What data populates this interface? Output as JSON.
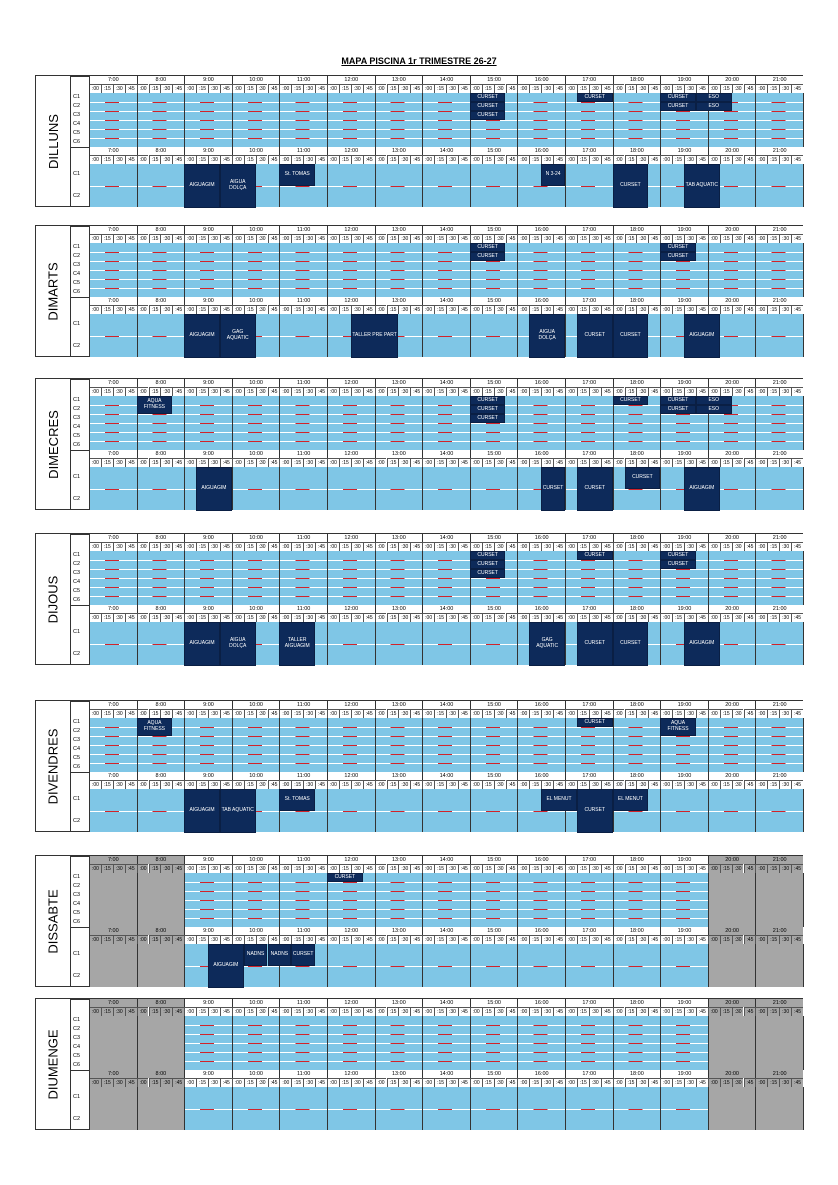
{
  "title": "MAPA PISCINA 1r TRIMESTRE 26-27",
  "hours": [
    "7:00",
    "8:00",
    "9:00",
    "10:00",
    "11:00",
    "12:00",
    "13:00",
    "14:00",
    "15:00",
    "16:00",
    "17:00",
    "18:00",
    "19:00",
    "20:00",
    "21:00"
  ],
  "quarters": [
    ":00",
    ":15",
    ":30",
    ":45"
  ],
  "lanes_main": [
    "C1",
    "C2",
    "C3",
    "C4",
    "C5",
    "C6"
  ],
  "lanes_small": [
    "C1",
    "C2"
  ],
  "days": [
    {
      "name": "DILLUNS",
      "closed": [],
      "main": [
        {
          "label": "CURSET",
          "start": 15,
          "end": 15.75,
          "lanes": [
            1,
            1
          ]
        },
        {
          "label": "CURSET",
          "start": 15,
          "end": 15.75,
          "lanes": [
            2,
            2
          ]
        },
        {
          "label": "CURSET",
          "start": 15,
          "end": 15.75,
          "lanes": [
            3,
            3
          ]
        },
        {
          "label": "CURSET",
          "start": 17.25,
          "end": 18,
          "lanes": [
            1,
            1
          ]
        },
        {
          "label": "CURSET",
          "start": 19,
          "end": 19.75,
          "lanes": [
            1,
            1
          ]
        },
        {
          "label": "ESO",
          "start": 19.75,
          "end": 20.5,
          "lanes": [
            1,
            1
          ]
        },
        {
          "label": "CURSET",
          "start": 19,
          "end": 19.75,
          "lanes": [
            2,
            2
          ]
        },
        {
          "label": "ESO",
          "start": 19.75,
          "end": 20.5,
          "lanes": [
            2,
            2
          ]
        }
      ],
      "small": [
        {
          "label": "AIGUAGIM",
          "start": 9,
          "end": 9.75,
          "lanes": [
            1,
            2
          ]
        },
        {
          "label": "AIGUA DOLÇA",
          "start": 9.75,
          "end": 10.5,
          "lanes": [
            1,
            2
          ]
        },
        {
          "label": "St. TOMAS",
          "start": 11,
          "end": 11.75,
          "lanes": [
            1,
            1
          ]
        },
        {
          "label": "N 3-24",
          "start": 16.5,
          "end": 17,
          "lanes": [
            1,
            1
          ]
        },
        {
          "label": "CURSET",
          "start": 18,
          "end": 18.75,
          "lanes": [
            1,
            2
          ]
        },
        {
          "label": "TAB AQUATIC",
          "start": 19.5,
          "end": 20.25,
          "lanes": [
            1,
            2
          ]
        }
      ]
    },
    {
      "name": "DIMARTS",
      "closed": [],
      "main": [
        {
          "label": "CURSET",
          "start": 15,
          "end": 15.75,
          "lanes": [
            1,
            1
          ]
        },
        {
          "label": "CURSET",
          "start": 15,
          "end": 15.75,
          "lanes": [
            2,
            2
          ]
        },
        {
          "label": "CURSET",
          "start": 19,
          "end": 19.75,
          "lanes": [
            1,
            1
          ]
        },
        {
          "label": "CURSET",
          "start": 19,
          "end": 19.75,
          "lanes": [
            2,
            2
          ]
        }
      ],
      "small": [
        {
          "label": "AIGUAGIM",
          "start": 9,
          "end": 9.75,
          "lanes": [
            1,
            2
          ]
        },
        {
          "label": "GAG AQUATIC",
          "start": 9.75,
          "end": 10.5,
          "lanes": [
            1,
            2
          ]
        },
        {
          "label": "TALLER PRE PART",
          "start": 12.5,
          "end": 13.5,
          "lanes": [
            1,
            2
          ]
        },
        {
          "label": "AIGUA DOLÇA",
          "start": 16.25,
          "end": 17,
          "lanes": [
            1,
            2
          ]
        },
        {
          "label": "CURSET",
          "start": 17.25,
          "end": 18,
          "lanes": [
            1,
            2
          ]
        },
        {
          "label": "CURSET",
          "start": 18,
          "end": 18.75,
          "lanes": [
            1,
            2
          ]
        },
        {
          "label": "AIGUAGIM",
          "start": 19.5,
          "end": 20.25,
          "lanes": [
            1,
            2
          ]
        }
      ]
    },
    {
      "name": "DIMECRES",
      "closed": [],
      "main": [
        {
          "label": "AQUA FITNESS",
          "start": 8,
          "end": 8.75,
          "lanes": [
            1,
            2
          ]
        },
        {
          "label": "CURSET",
          "start": 15,
          "end": 15.75,
          "lanes": [
            1,
            1
          ]
        },
        {
          "label": "CURSET",
          "start": 15,
          "end": 15.75,
          "lanes": [
            2,
            2
          ]
        },
        {
          "label": "CURSET",
          "start": 15,
          "end": 15.75,
          "lanes": [
            3,
            3
          ]
        },
        {
          "label": "CURSET",
          "start": 18,
          "end": 18.75,
          "lanes": [
            1,
            1
          ]
        },
        {
          "label": "CURSET",
          "start": 19,
          "end": 19.75,
          "lanes": [
            1,
            1
          ]
        },
        {
          "label": "ESO",
          "start": 19.75,
          "end": 20.5,
          "lanes": [
            1,
            1
          ]
        },
        {
          "label": "CURSET",
          "start": 19,
          "end": 19.75,
          "lanes": [
            2,
            2
          ]
        },
        {
          "label": "ESO",
          "start": 19.75,
          "end": 20.5,
          "lanes": [
            2,
            2
          ]
        }
      ],
      "small": [
        {
          "label": "AIGUAGIM",
          "start": 9.25,
          "end": 10,
          "lanes": [
            1,
            2
          ]
        },
        {
          "label": "CURSET",
          "start": 16.5,
          "end": 17,
          "lanes": [
            1,
            2
          ]
        },
        {
          "label": "CURSET",
          "start": 17.25,
          "end": 18,
          "lanes": [
            1,
            2
          ]
        },
        {
          "label": "CURSET",
          "start": 18.25,
          "end": 19,
          "lanes": [
            1,
            1
          ]
        },
        {
          "label": "AIGUAGIM",
          "start": 19.5,
          "end": 20.25,
          "lanes": [
            1,
            2
          ]
        }
      ]
    },
    {
      "name": "DIJOUS",
      "closed": [],
      "main": [
        {
          "label": "CURSET",
          "start": 15,
          "end": 15.75,
          "lanes": [
            1,
            1
          ]
        },
        {
          "label": "CURSET",
          "start": 15,
          "end": 15.75,
          "lanes": [
            2,
            2
          ]
        },
        {
          "label": "CURSET",
          "start": 15,
          "end": 15.75,
          "lanes": [
            3,
            3
          ]
        },
        {
          "label": "CURSET",
          "start": 17.25,
          "end": 18,
          "lanes": [
            1,
            1
          ]
        },
        {
          "label": "CURSET",
          "start": 19,
          "end": 19.75,
          "lanes": [
            1,
            1
          ]
        },
        {
          "label": "CURSET",
          "start": 19,
          "end": 19.75,
          "lanes": [
            2,
            2
          ]
        }
      ],
      "small": [
        {
          "label": "AIGUAGIM",
          "start": 9,
          "end": 9.75,
          "lanes": [
            1,
            2
          ]
        },
        {
          "label": "AIGUA DOLÇA",
          "start": 9.75,
          "end": 10.5,
          "lanes": [
            1,
            2
          ]
        },
        {
          "label": "TALLER AIGUAGIM",
          "start": 11,
          "end": 11.75,
          "lanes": [
            1,
            2
          ]
        },
        {
          "label": "GAG AQUATIC",
          "start": 16.25,
          "end": 17,
          "lanes": [
            1,
            2
          ]
        },
        {
          "label": "CURSET",
          "start": 17.25,
          "end": 18,
          "lanes": [
            1,
            2
          ]
        },
        {
          "label": "CURSET",
          "start": 18,
          "end": 18.75,
          "lanes": [
            1,
            2
          ]
        },
        {
          "label": "AIGUAGIM",
          "start": 19.5,
          "end": 20.25,
          "lanes": [
            1,
            2
          ]
        }
      ]
    },
    {
      "name": "DIVENDRES",
      "closed": [],
      "main": [
        {
          "label": "AQUA FITNESS",
          "start": 8,
          "end": 8.75,
          "lanes": [
            1,
            2
          ]
        },
        {
          "label": "CURSET",
          "start": 17.25,
          "end": 18,
          "lanes": [
            1,
            1
          ]
        },
        {
          "label": "AQUA FITNESS",
          "start": 19,
          "end": 19.75,
          "lanes": [
            1,
            2
          ]
        }
      ],
      "small": [
        {
          "label": "AIGUAGIM",
          "start": 9,
          "end": 9.75,
          "lanes": [
            1,
            2
          ]
        },
        {
          "label": "TAB AQUATIC",
          "start": 9.75,
          "end": 10.5,
          "lanes": [
            1,
            2
          ]
        },
        {
          "label": "St. TOMAS",
          "start": 11,
          "end": 11.75,
          "lanes": [
            1,
            1
          ]
        },
        {
          "label": "EL MENUT",
          "start": 16.5,
          "end": 17.25,
          "lanes": [
            1,
            1
          ]
        },
        {
          "label": "CURSET",
          "start": 17.25,
          "end": 18,
          "lanes": [
            1,
            2
          ]
        },
        {
          "label": "EL MENUT",
          "start": 18,
          "end": 18.75,
          "lanes": [
            1,
            1
          ]
        }
      ]
    },
    {
      "name": "DISSABTE",
      "closed": [
        [
          7,
          9
        ],
        [
          20,
          22
        ]
      ],
      "main": [
        {
          "label": "CURSET",
          "start": 12,
          "end": 12.75,
          "lanes": [
            1,
            1
          ]
        }
      ],
      "small": [
        {
          "label": "AIGUAGIM",
          "start": 9.5,
          "end": 10.25,
          "lanes": [
            1,
            2
          ]
        },
        {
          "label": "NADNS",
          "start": 10.25,
          "end": 10.75,
          "lanes": [
            1,
            1
          ]
        },
        {
          "label": "NADNS",
          "start": 10.75,
          "end": 11.25,
          "lanes": [
            1,
            1
          ]
        },
        {
          "label": "CURSET",
          "start": 11.25,
          "end": 11.75,
          "lanes": [
            1,
            1
          ]
        }
      ]
    },
    {
      "name": "DIUMENGE",
      "closed": [
        [
          7,
          9
        ],
        [
          20,
          22
        ]
      ],
      "main": [],
      "small": []
    }
  ]
}
